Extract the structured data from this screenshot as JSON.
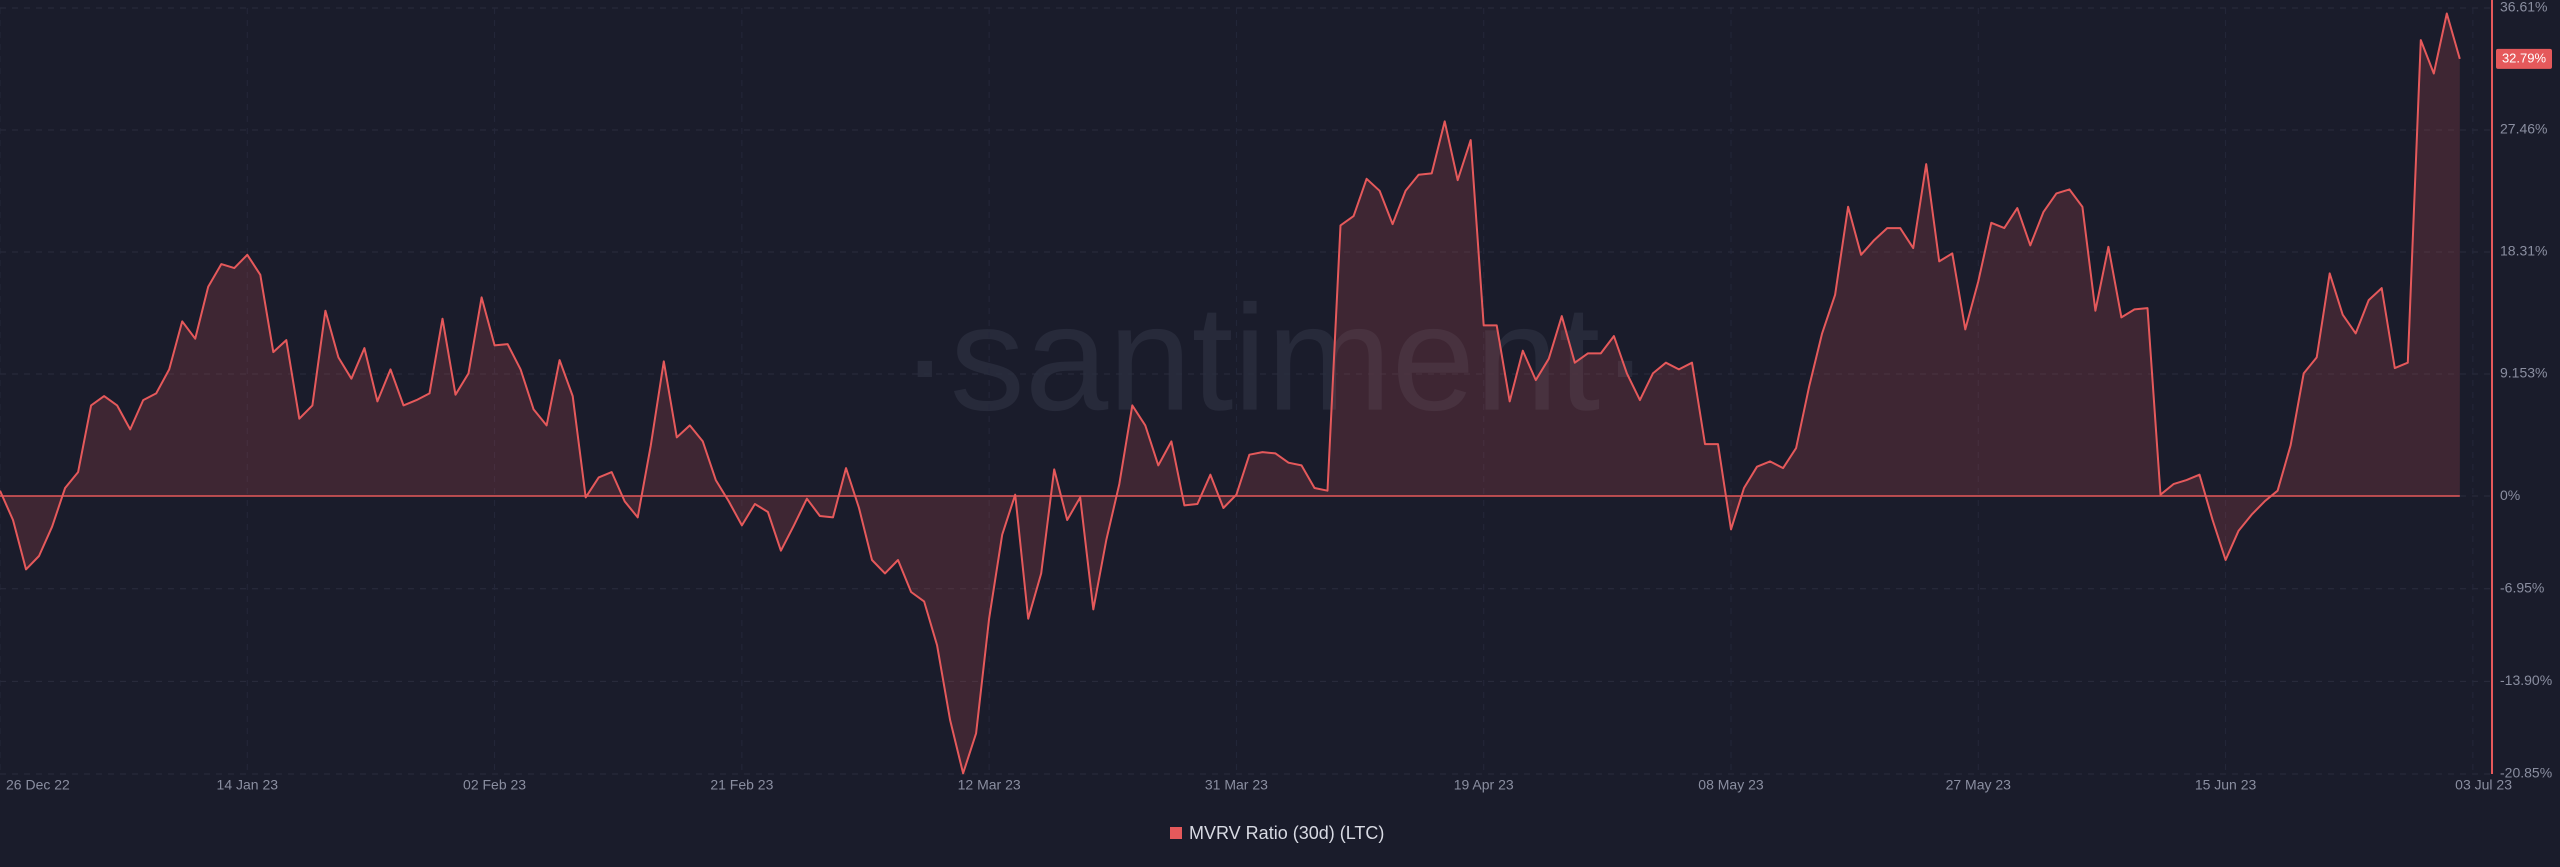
{
  "chart_data": {
    "type": "area",
    "watermark": "·santiment·",
    "categories": [
      "26 Dec 22",
      null,
      null,
      null,
      null,
      null,
      null,
      null,
      null,
      null,
      null,
      null,
      null,
      null,
      null,
      null,
      null,
      null,
      null,
      "14 Jan 23",
      null,
      null,
      null,
      null,
      null,
      null,
      null,
      null,
      null,
      null,
      null,
      null,
      null,
      null,
      null,
      null,
      null,
      null,
      "02 Feb 23",
      null,
      null,
      null,
      null,
      null,
      null,
      null,
      null,
      null,
      null,
      null,
      null,
      null,
      null,
      null,
      null,
      null,
      null,
      "21 Feb 23",
      null,
      null,
      null,
      null,
      null,
      null,
      null,
      null,
      null,
      null,
      null,
      null,
      null,
      null,
      null,
      null,
      null,
      null,
      "12 Mar 23",
      null,
      null,
      null,
      null,
      null,
      null,
      null,
      null,
      null,
      null,
      null,
      null,
      null,
      null,
      null,
      null,
      null,
      null,
      "31 Mar 23",
      null,
      null,
      null,
      null,
      null,
      null,
      null,
      null,
      null,
      null,
      null,
      null,
      null,
      null,
      null,
      null,
      null,
      null,
      "19 Apr 23",
      null,
      null,
      null,
      null,
      null,
      null,
      null,
      null,
      null,
      null,
      null,
      null,
      null,
      null,
      null,
      null,
      null,
      null,
      "08 May 23",
      null,
      null,
      null,
      null,
      null,
      null,
      null,
      null,
      null,
      null,
      null,
      null,
      null,
      null,
      null,
      null,
      null,
      null,
      "27 May 23",
      null,
      null,
      null,
      null,
      null,
      null,
      null,
      null,
      null,
      null,
      null,
      null,
      null,
      null,
      null,
      null,
      null,
      null,
      "15 Jun 23",
      null,
      null,
      null,
      null,
      null,
      null,
      null,
      null,
      null,
      null,
      null,
      null,
      null,
      null,
      null,
      null,
      null,
      null,
      "03 Jul 23"
    ],
    "series": [
      {
        "name": "MVRV Ratio (30d) (LTC)",
        "color": "#e5595b",
        "values": [
          0.4,
          -1.8,
          -5.5,
          -4.5,
          -2.3,
          0.6,
          1.8,
          6.8,
          7.5,
          6.8,
          5.0,
          7.2,
          7.7,
          9.5,
          13.1,
          11.8,
          15.7,
          17.4,
          17.1,
          18.1,
          16.6,
          10.8,
          11.7,
          5.8,
          6.8,
          13.9,
          10.4,
          8.8,
          11.1,
          7.1,
          9.5,
          6.8,
          7.2,
          7.7,
          13.3,
          7.6,
          9.2,
          14.9,
          11.3,
          11.4,
          9.5,
          6.5,
          5.3,
          10.2,
          7.5,
          -0.1,
          1.4,
          1.8,
          -0.4,
          -1.6,
          3.8,
          10.1,
          4.4,
          5.3,
          4.1,
          1.2,
          -0.4,
          -2.2,
          -0.6,
          -1.2,
          -4.1,
          -2.2,
          -0.2,
          -1.5,
          -1.6,
          2.1,
          -0.9,
          -4.8,
          -5.8,
          -4.8,
          -7.2,
          -7.9,
          -11.2,
          -16.8,
          -20.8,
          -17.8,
          -9.2,
          -2.9,
          0.1,
          -9.2,
          -5.8,
          2.0,
          -1.8,
          -0.1,
          -8.5,
          -3.3,
          0.9,
          6.8,
          5.3,
          2.3,
          4.1,
          -0.7,
          -0.6,
          1.6,
          -0.9,
          0.1,
          3.1,
          3.3,
          3.2,
          2.5,
          2.3,
          0.6,
          0.4,
          20.3,
          21.0,
          23.8,
          22.9,
          20.4,
          22.9,
          24.1,
          24.2,
          28.1,
          23.7,
          26.7,
          12.8,
          12.8,
          7.1,
          10.9,
          8.7,
          10.3,
          13.5,
          10.0,
          10.7,
          10.7,
          12.0,
          9.2,
          7.2,
          9.2,
          10.0,
          9.5,
          10.0,
          3.9,
          3.9,
          -2.5,
          0.6,
          2.2,
          2.6,
          2.1,
          3.6,
          8.2,
          12.2,
          15.1,
          21.7,
          18.1,
          19.2,
          20.1,
          20.1,
          18.6,
          24.9,
          17.6,
          18.2,
          12.5,
          16.1,
          20.5,
          20.1,
          21.6,
          18.8,
          21.3,
          22.7,
          23.0,
          21.7,
          13.9,
          18.7,
          13.4,
          14.0,
          14.1,
          0.1,
          0.9,
          1.2,
          1.6,
          -1.8,
          -4.8,
          -2.6,
          -1.4,
          -0.4,
          0.4,
          3.8,
          9.2,
          10.4,
          16.7,
          13.6,
          12.2,
          14.7,
          15.6,
          9.6,
          10.0,
          34.2,
          31.7,
          36.2,
          32.79,
          null
        ]
      }
    ],
    "last_value_label": "32.79%",
    "ylim": [
      -20.85,
      36.61
    ],
    "yticks": [
      {
        "value": 36.61,
        "label": "36.61%"
      },
      {
        "value": 27.46,
        "label": "27.46%"
      },
      {
        "value": 18.31,
        "label": "18.31%"
      },
      {
        "value": 9.153,
        "label": "9.153%"
      },
      {
        "value": 0,
        "label": "0%"
      },
      {
        "value": -6.95,
        "label": "-6.95%"
      },
      {
        "value": -13.9,
        "label": "-13.90%"
      },
      {
        "value": -20.85,
        "label": "-20.85%"
      }
    ],
    "grid": true
  }
}
